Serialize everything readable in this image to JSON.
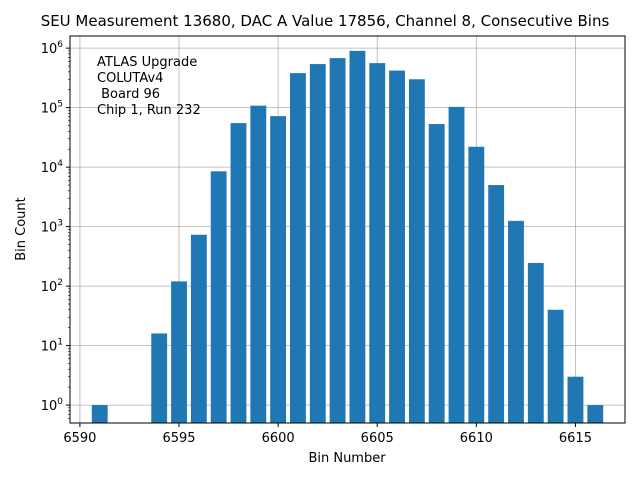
{
  "chart_data": {
    "type": "bar",
    "title": "SEU Measurement 13680, DAC A Value 17856, Channel 8, Consecutive Bins",
    "xlabel": "Bin Number",
    "ylabel": "Bin Count",
    "yscale": "log",
    "grid": true,
    "color": "#1f77b4",
    "xlim": [
      6589.5,
      6617.5
    ],
    "ylim": [
      0.5,
      1600000
    ],
    "xticks": [
      6590,
      6595,
      6600,
      6605,
      6610,
      6615
    ],
    "yticks": [
      {
        "value": 1,
        "base": "10",
        "exp": "0"
      },
      {
        "value": 10,
        "base": "10",
        "exp": "1"
      },
      {
        "value": 100,
        "base": "10",
        "exp": "2"
      },
      {
        "value": 1000,
        "base": "10",
        "exp": "3"
      },
      {
        "value": 10000,
        "base": "10",
        "exp": "4"
      },
      {
        "value": 100000,
        "base": "10",
        "exp": "5"
      },
      {
        "value": 1000000,
        "base": "10",
        "exp": "6"
      }
    ],
    "annotation": [
      "ATLAS Upgrade",
      "COLUTAv4",
      " Board 96",
      "Chip 1, Run 232"
    ],
    "bars": [
      {
        "x": 6591,
        "value": 1
      },
      {
        "x": 6594,
        "value": 16
      },
      {
        "x": 6595,
        "value": 120
      },
      {
        "x": 6596,
        "value": 730
      },
      {
        "x": 6597,
        "value": 8500
      },
      {
        "x": 6598,
        "value": 55000
      },
      {
        "x": 6599,
        "value": 108000
      },
      {
        "x": 6600,
        "value": 72000
      },
      {
        "x": 6601,
        "value": 380000
      },
      {
        "x": 6602,
        "value": 540000
      },
      {
        "x": 6603,
        "value": 680000
      },
      {
        "x": 6604,
        "value": 900000
      },
      {
        "x": 6605,
        "value": 560000
      },
      {
        "x": 6606,
        "value": 420000
      },
      {
        "x": 6607,
        "value": 300000
      },
      {
        "x": 6608,
        "value": 53000
      },
      {
        "x": 6609,
        "value": 103000
      },
      {
        "x": 6610,
        "value": 22000
      },
      {
        "x": 6611,
        "value": 5000
      },
      {
        "x": 6612,
        "value": 1250
      },
      {
        "x": 6613,
        "value": 245
      },
      {
        "x": 6614,
        "value": 40
      },
      {
        "x": 6615,
        "value": 3
      },
      {
        "x": 6616,
        "value": 1
      }
    ]
  }
}
